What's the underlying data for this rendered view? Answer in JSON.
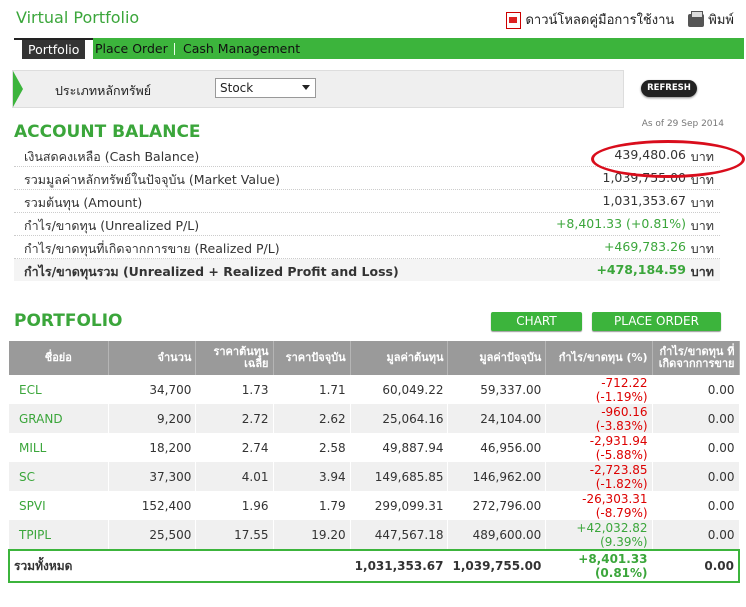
{
  "header": {
    "title": "Virtual Portfolio",
    "download_label": "ดาวน์โหลดคู่มือการใช้งาน",
    "print_label": "พิมพ์"
  },
  "nav": {
    "tabs": [
      {
        "label": "Portfolio",
        "active": true
      },
      {
        "label": "Place Order"
      },
      {
        "label": "Cash Management"
      }
    ]
  },
  "filter": {
    "label": "ประเภทหลักทรัพย์",
    "selected": "Stock",
    "refresh_label": "REFRESH"
  },
  "account": {
    "heading": "ACCOUNT BALANCE",
    "as_of": "As of 29 Sep 2014",
    "unit": "บาท",
    "rows": [
      {
        "label": "เงินสดคงเหลือ (Cash Balance)",
        "value": "439,480.06"
      },
      {
        "label": "รวมมูลค่าหลักทรัพย์ในปัจจุบัน (Market Value)",
        "value": "1,039,755.00"
      },
      {
        "label": "รวมต้นทุน (Amount)",
        "value": "1,031,353.67"
      },
      {
        "label": "กำไร/ขาดทุน (Unrealized P/L)",
        "value": "+8,401.33 (+0.81%)"
      },
      {
        "label": "กำไร/ขาดทุนที่เกิดจากการขาย (Realized P/L)",
        "value": "+469,783.26"
      },
      {
        "label": "กำไร/ขาดทุนรวม (Unrealized + Realized Profit and Loss)",
        "value": "+478,184.59"
      }
    ]
  },
  "portfolio": {
    "heading": "PORTFOLIO",
    "chart_label": "CHART",
    "place_order_label": "PLACE ORDER",
    "columns": [
      "ชื่อย่อ",
      "จำนวน",
      "ราคาต้นทุนเฉลี่ย",
      "ราคาปัจจุบัน",
      "มูลค่าต้นทุน",
      "มูลค่าปัจจุบัน",
      "กำไร/ขาดทุน (%)",
      "กำไร/ขาดทุน ที่เกิดจากการขาย"
    ],
    "rows": [
      {
        "symbol": "ECL",
        "qty": "34,700",
        "avg": "1.73",
        "price": "1.71",
        "cost": "60,049.22",
        "market": "59,337.00",
        "pl": "-712.22",
        "pct": "(-1.19%)",
        "realized": "0.00",
        "sign": "neg"
      },
      {
        "symbol": "GRAND",
        "qty": "9,200",
        "avg": "2.72",
        "price": "2.62",
        "cost": "25,064.16",
        "market": "24,104.00",
        "pl": "-960.16",
        "pct": "(-3.83%)",
        "realized": "0.00",
        "sign": "neg"
      },
      {
        "symbol": "MILL",
        "qty": "18,200",
        "avg": "2.74",
        "price": "2.58",
        "cost": "49,887.94",
        "market": "46,956.00",
        "pl": "-2,931.94",
        "pct": "(-5.88%)",
        "realized": "0.00",
        "sign": "neg"
      },
      {
        "symbol": "SC",
        "qty": "37,300",
        "avg": "4.01",
        "price": "3.94",
        "cost": "149,685.85",
        "market": "146,962.00",
        "pl": "-2,723.85",
        "pct": "(-1.82%)",
        "realized": "0.00",
        "sign": "neg"
      },
      {
        "symbol": "SPVI",
        "qty": "152,400",
        "avg": "1.96",
        "price": "1.79",
        "cost": "299,099.31",
        "market": "272,796.00",
        "pl": "-26,303.31",
        "pct": "(-8.79%)",
        "realized": "0.00",
        "sign": "neg"
      },
      {
        "symbol": "TPIPL",
        "qty": "25,500",
        "avg": "17.55",
        "price": "19.20",
        "cost": "447,567.18",
        "market": "489,600.00",
        "pl": "+42,032.82",
        "pct": "(9.39%)",
        "realized": "0.00",
        "sign": "pos"
      }
    ],
    "total": {
      "label": "รวมทั้งหมด",
      "cost": "1,031,353.67",
      "market": "1,039,755.00",
      "pl": "+8,401.33",
      "pct": "(0.81%)",
      "realized": "0.00"
    }
  }
}
